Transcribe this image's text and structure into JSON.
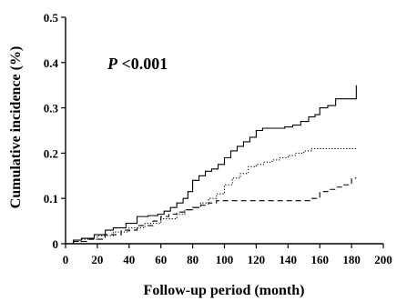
{
  "chart_data": {
    "type": "line",
    "xlabel": "Follow-up period (month)",
    "ylabel": "Cumulative incidence (%)",
    "xlim": [
      0,
      200
    ],
    "ylim": [
      0,
      0.5
    ],
    "xticks": [
      "0",
      "20",
      "40",
      "60",
      "80",
      "100",
      "120",
      "140",
      "160",
      "180",
      "200"
    ],
    "yticks": [
      "0",
      "0.1",
      "0.2",
      "0.3",
      "0.4",
      "0.5"
    ],
    "grid": false,
    "annotation": {
      "italic": "P",
      "rest": " <0.001"
    },
    "series": [
      {
        "style": "solid",
        "x": [
          0,
          5,
          10,
          18,
          25,
          30,
          38,
          45,
          52,
          58,
          62,
          66,
          70,
          74,
          77,
          80,
          84,
          88,
          92,
          96,
          100,
          104,
          108,
          112,
          116,
          120,
          124,
          128,
          133,
          138,
          143,
          148,
          153,
          157,
          160,
          165,
          170,
          175,
          183
        ],
        "y": [
          0,
          0.008,
          0.012,
          0.02,
          0.03,
          0.035,
          0.045,
          0.06,
          0.062,
          0.065,
          0.072,
          0.08,
          0.09,
          0.1,
          0.115,
          0.14,
          0.15,
          0.16,
          0.165,
          0.175,
          0.19,
          0.205,
          0.215,
          0.225,
          0.235,
          0.25,
          0.255,
          0.255,
          0.255,
          0.258,
          0.262,
          0.27,
          0.28,
          0.285,
          0.3,
          0.305,
          0.32,
          0.32,
          0.35
        ]
      },
      {
        "style": "dotted",
        "x": [
          0,
          5,
          10,
          20,
          30,
          40,
          50,
          60,
          70,
          75,
          80,
          85,
          90,
          95,
          100,
          105,
          110,
          115,
          120,
          125,
          130,
          135,
          140,
          145,
          150,
          155,
          160,
          170,
          183
        ],
        "y": [
          0,
          0.005,
          0.01,
          0.018,
          0.026,
          0.035,
          0.045,
          0.055,
          0.065,
          0.075,
          0.08,
          0.09,
          0.1,
          0.11,
          0.13,
          0.145,
          0.155,
          0.17,
          0.175,
          0.18,
          0.185,
          0.19,
          0.195,
          0.2,
          0.205,
          0.21,
          0.21,
          0.21,
          0.21
        ]
      },
      {
        "style": "dashed",
        "x": [
          0,
          5,
          15,
          25,
          35,
          45,
          55,
          60,
          65,
          70,
          75,
          80,
          85,
          90,
          95,
          100,
          110,
          120,
          130,
          140,
          150,
          155,
          160,
          165,
          170,
          175,
          180,
          183
        ],
        "y": [
          0,
          0.005,
          0.01,
          0.02,
          0.03,
          0.04,
          0.05,
          0.06,
          0.065,
          0.07,
          0.075,
          0.08,
          0.085,
          0.09,
          0.095,
          0.095,
          0.095,
          0.095,
          0.095,
          0.095,
          0.095,
          0.1,
          0.115,
          0.12,
          0.125,
          0.13,
          0.145,
          0.145
        ]
      }
    ]
  }
}
